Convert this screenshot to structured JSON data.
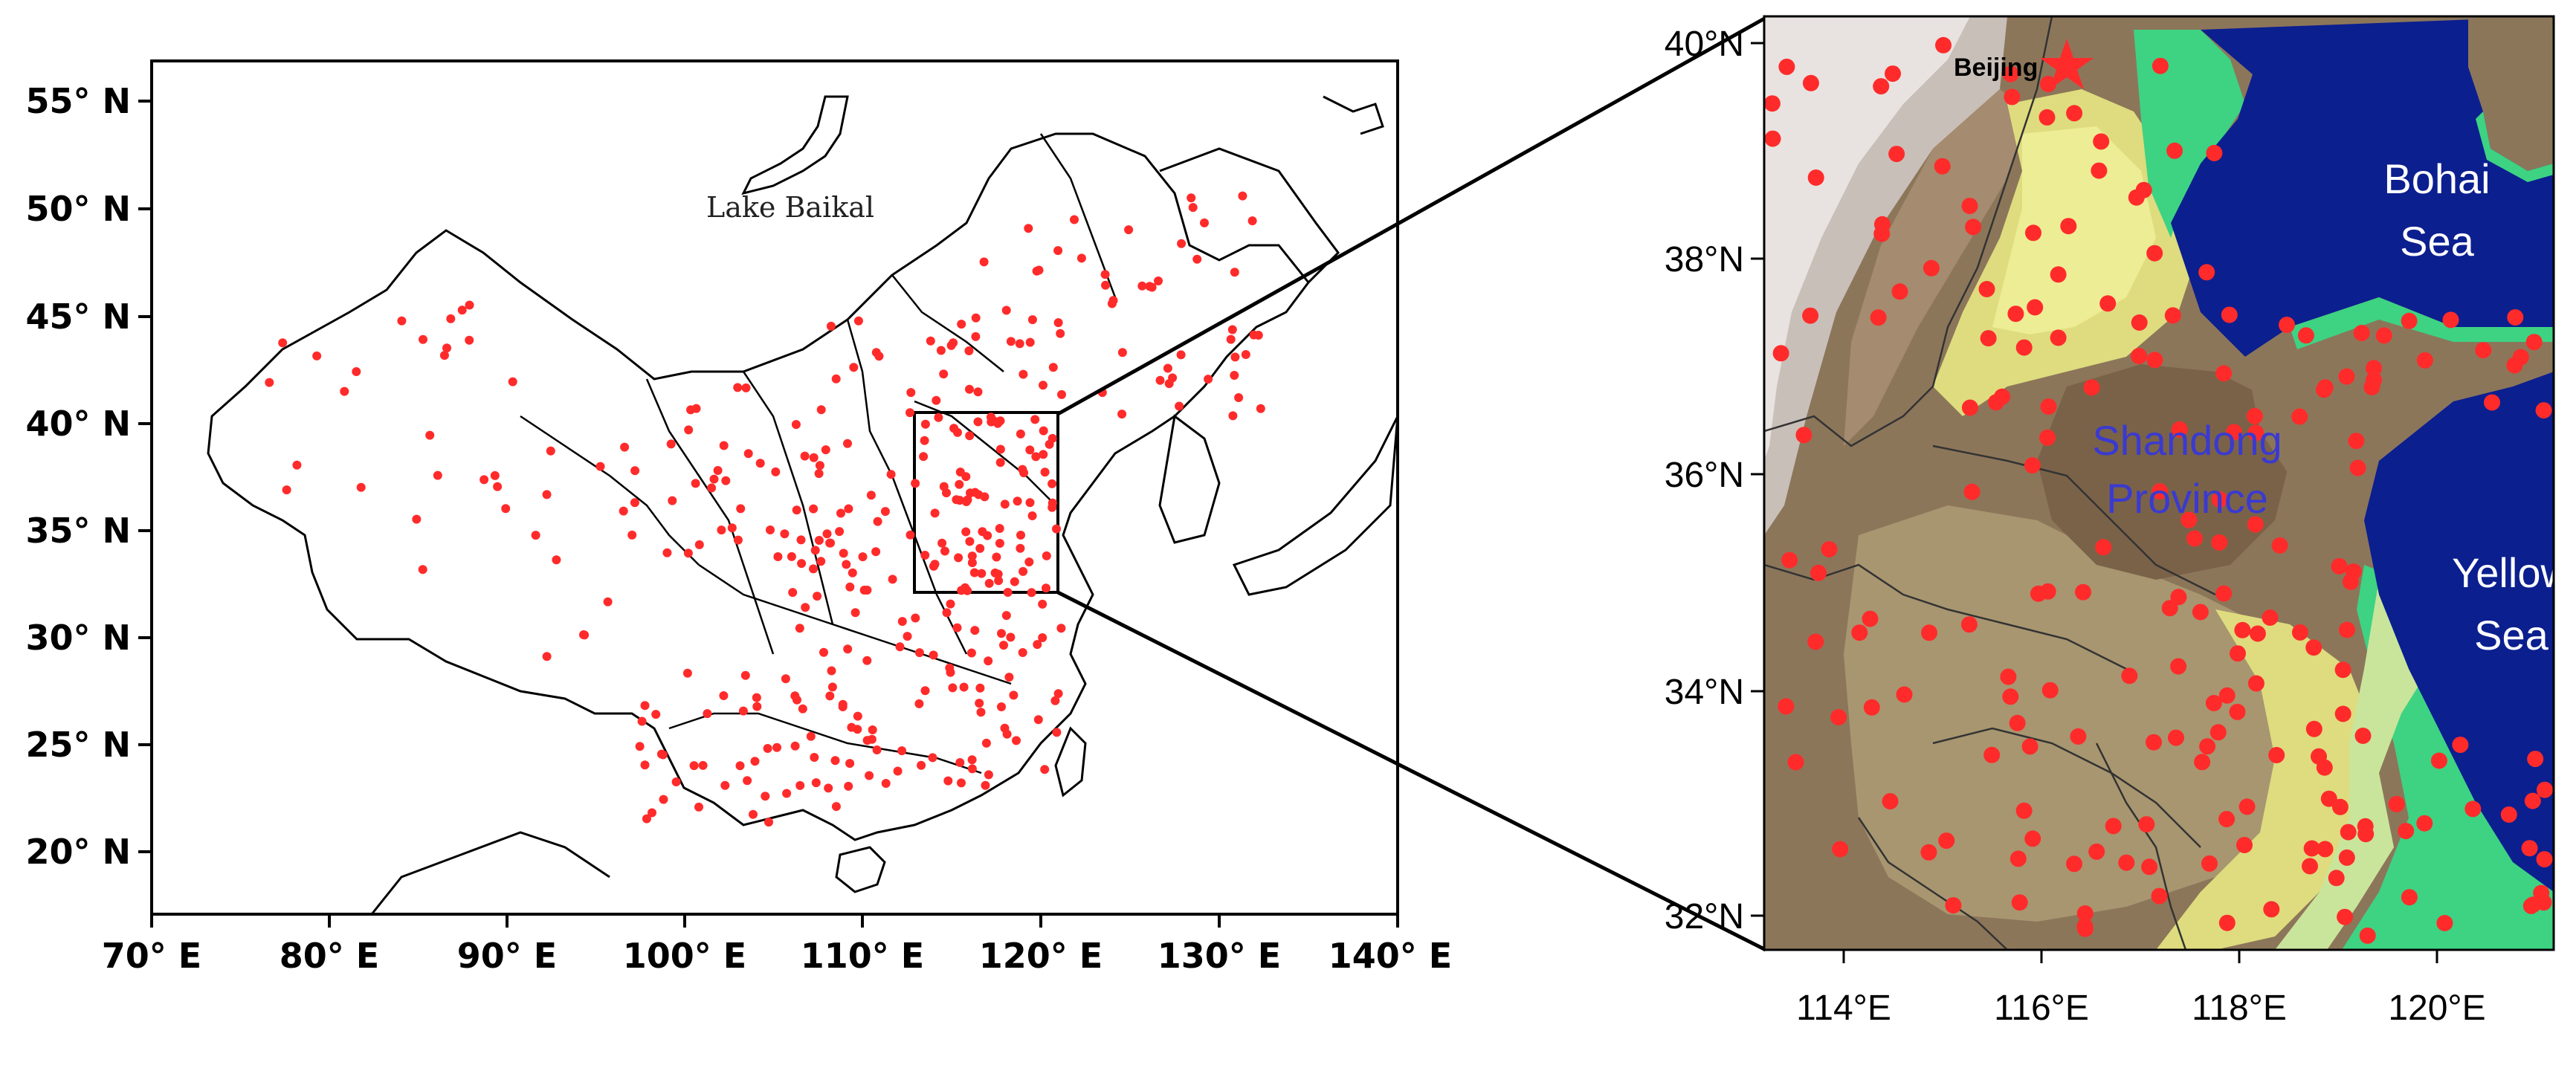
{
  "colors": {
    "station": "#ff2b2b",
    "sea": "#0b1f8f",
    "coast_green": "#30d080",
    "plain_yellow": "#e9ea8c",
    "hills_brown": "#8c765a",
    "mountain_grey": "#c9bfb9"
  },
  "left_map": {
    "x_ticks": [
      "70° E",
      "80° E",
      "90° E",
      "100° E",
      "110° E",
      "120° E",
      "130° E",
      "140° E"
    ],
    "y_ticks": [
      "55° N",
      "50° N",
      "45° N",
      "40° N",
      "35° N",
      "30° N",
      "25° N",
      "20° N"
    ],
    "label_lake": "Lake Baikal",
    "inset_box": "Shandong region box"
  },
  "right_map": {
    "x_ticks": [
      "114°E",
      "116°E",
      "118°E",
      "120°E"
    ],
    "y_ticks": [
      "40°N",
      "38°N",
      "36°N",
      "34°N",
      "32°N"
    ],
    "label_city": "Beijing",
    "label_bohai_line1": "Bohai",
    "label_bohai_line2": "Sea",
    "label_province_line1": "Shandong",
    "label_province_line2": "Province",
    "label_yellow_line1": "Yellow",
    "label_yellow_line2": "Sea"
  }
}
